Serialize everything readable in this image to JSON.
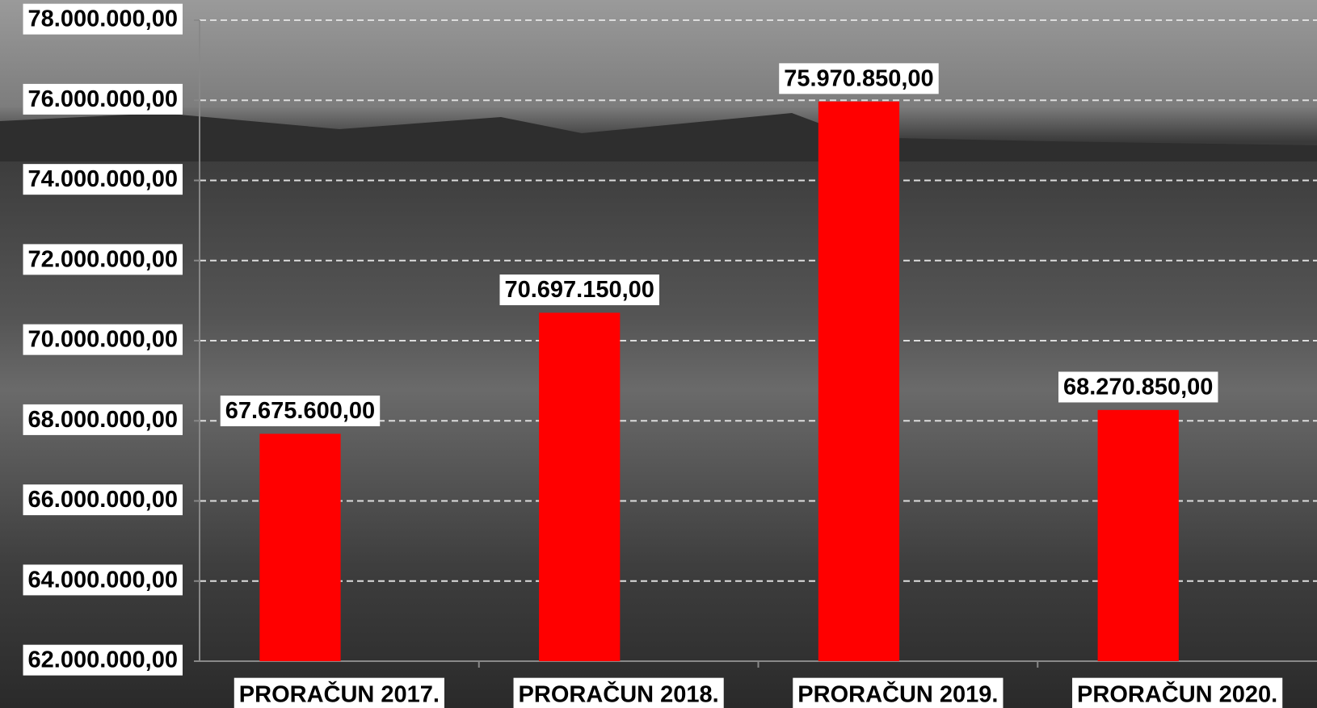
{
  "chart_data": {
    "type": "bar",
    "categories": [
      "PRORAČUN 2017.",
      "PRORAČUN 2018.",
      "PRORAČUN 2019.",
      "PRORAČUN 2020."
    ],
    "values": [
      67675600,
      70697150,
      75970850,
      68270850
    ],
    "value_labels": [
      "67.675.600,00",
      "70.697.150,00",
      "75.970.850,00",
      "68.270.850,00"
    ],
    "color": "#ff0000",
    "ylim": [
      62000000,
      78000000
    ],
    "yticks": [
      {
        "value": 62000000,
        "label": "62.000.000,00"
      },
      {
        "value": 64000000,
        "label": "64.000.000,00"
      },
      {
        "value": 66000000,
        "label": "66.000.000,00"
      },
      {
        "value": 68000000,
        "label": "68.000.000,00"
      },
      {
        "value": 70000000,
        "label": "70.000.000,00"
      },
      {
        "value": 72000000,
        "label": "72.000.000,00"
      },
      {
        "value": 74000000,
        "label": "74.000.000,00"
      },
      {
        "value": 76000000,
        "label": "76.000.000,00"
      },
      {
        "value": 78000000,
        "label": "78.000.000,00"
      }
    ],
    "grid": true
  }
}
